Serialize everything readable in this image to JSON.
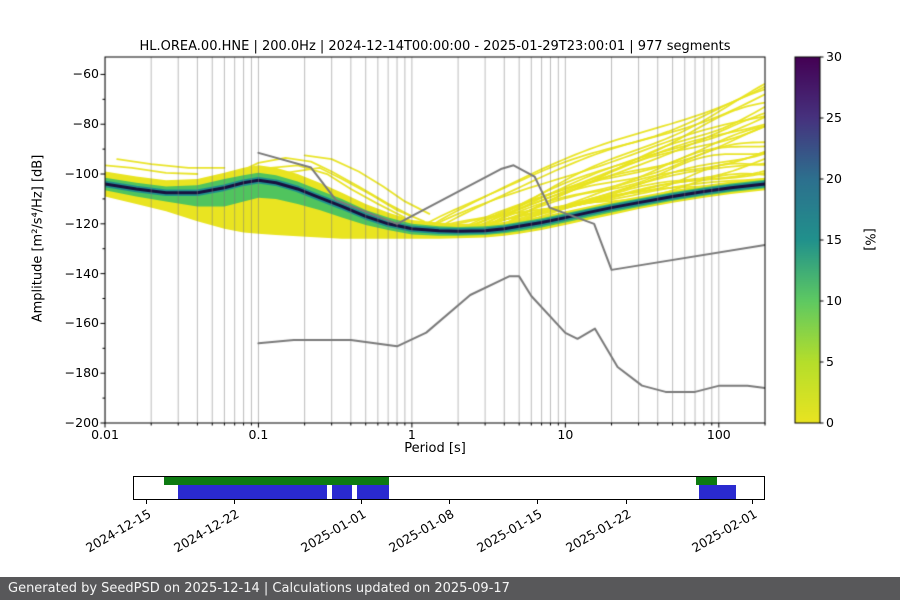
{
  "chart_data": {
    "type": "heatmap",
    "title": "HL.OREA.00.HNE | 200.0Hz | 2024-12-14T00:00:00 - 2025-01-29T23:00:01 | 977 segments",
    "xlabel": "Period [s]",
    "ylabel": "Amplitude [m²/s⁴/Hz] [dB]",
    "xscale": "log",
    "xlim": [
      0.01,
      200
    ],
    "ylim": [
      -200,
      -53
    ],
    "xticks": [
      0.01,
      0.1,
      1,
      10,
      100
    ],
    "xtick_labels": [
      "0.01",
      "0.1",
      "1",
      "10",
      "100"
    ],
    "yticks": [
      -200,
      -180,
      -160,
      -140,
      -120,
      -100,
      -80,
      -60
    ],
    "grid": {
      "color": "rgba(120,120,120,0.55)"
    },
    "colorbar": {
      "label": "[%]",
      "min": 0,
      "max": 30,
      "ticks": [
        0,
        5,
        10,
        15,
        20,
        25,
        30
      ],
      "stops": [
        {
          "v": 0,
          "c": "#e9e421"
        },
        {
          "v": 5,
          "c": "#b5de2b"
        },
        {
          "v": 10,
          "c": "#5ec962"
        },
        {
          "v": 15,
          "c": "#21918c"
        },
        {
          "v": 20,
          "c": "#2d708e"
        },
        {
          "v": 25,
          "c": "#46327e"
        },
        {
          "v": 30,
          "c": "#440154"
        }
      ]
    },
    "ppsd": {
      "periods": [
        0.01,
        0.016,
        0.025,
        0.04,
        0.06,
        0.08,
        0.1,
        0.13,
        0.18,
        0.25,
        0.35,
        0.5,
        0.7,
        1,
        1.5,
        2,
        3,
        4,
        5,
        7,
        10,
        14,
        20,
        30,
        50,
        80,
        120,
        200
      ],
      "mode_db": [
        -104,
        -106,
        -107.5,
        -107.5,
        -105.5,
        -103.5,
        -102.5,
        -103.5,
        -106,
        -109.5,
        -113,
        -117,
        -120,
        -122,
        -122.8,
        -123,
        -122.8,
        -122,
        -121,
        -119.5,
        -117.5,
        -115.5,
        -113.5,
        -111.5,
        -109,
        -107,
        -105.5,
        -104
      ],
      "yellow_upper": [
        -99,
        -101,
        -102.5,
        -102,
        -99.5,
        -97.5,
        -96.5,
        -97.5,
        -100,
        -103.5,
        -107.5,
        -112,
        -115.5,
        -118.5,
        -119.5,
        -120,
        -120,
        -119.3,
        -118.5,
        -117,
        -115,
        -113,
        -111,
        -109,
        -106.5,
        -104.5,
        -103,
        -101.5
      ],
      "yellow_lower": [
        -109,
        -112,
        -115,
        -119,
        -122,
        -123.5,
        -124,
        -124.5,
        -125,
        -125.5,
        -126,
        -126,
        -126,
        -126,
        -126,
        -125.8,
        -125.5,
        -124.8,
        -124,
        -122.5,
        -120.5,
        -118.5,
        -116.5,
        -114,
        -111.5,
        -109.5,
        -108,
        -106.5
      ],
      "green_upper": [
        -101.5,
        -103.5,
        -105,
        -104.5,
        -102,
        -100.5,
        -99.5,
        -100.5,
        -103,
        -106.5,
        -110,
        -114.5,
        -117.5,
        -120,
        -121,
        -121.3,
        -121,
        -120.3,
        -119.3,
        -117.8,
        -115.8,
        -113.8,
        -111.8,
        -109.8,
        -107.3,
        -105.3,
        -103.8,
        -102.3
      ],
      "green_lower": [
        -106.5,
        -109,
        -111,
        -113,
        -113,
        -111,
        -109.5,
        -110,
        -112,
        -114.5,
        -117.5,
        -120.5,
        -122.5,
        -124.3,
        -124.8,
        -124.8,
        -124.5,
        -123.8,
        -123,
        -121.5,
        -119.5,
        -117.5,
        -115.5,
        -113.2,
        -110.7,
        -108.7,
        -107.2,
        -105.7
      ],
      "teal_halfwidth_db": 1.3,
      "core_halfwidth_db": 0.6,
      "colors": {
        "yellow": "#e9e421",
        "green": "#50c45e",
        "teal": "#1f918d",
        "core": "#18103f"
      }
    },
    "extra_lines": [
      [
        [
          0.07,
          -100
        ],
        [
          0.1,
          -95.5
        ],
        [
          0.15,
          -93.5
        ],
        [
          0.22,
          -95
        ],
        [
          0.3,
          -99
        ],
        [
          0.45,
          -105
        ],
        [
          0.7,
          -112
        ],
        [
          1,
          -117
        ]
      ],
      [
        [
          0.08,
          -102
        ],
        [
          0.12,
          -97.5
        ],
        [
          0.18,
          -96.5
        ],
        [
          0.28,
          -100
        ],
        [
          0.4,
          -106
        ],
        [
          0.6,
          -112
        ],
        [
          0.9,
          -117.5
        ]
      ],
      [
        [
          0.15,
          -99.5
        ],
        [
          0.25,
          -97.5
        ],
        [
          0.35,
          -102
        ],
        [
          0.55,
          -108.5
        ],
        [
          0.8,
          -114.5
        ],
        [
          1.2,
          -119
        ]
      ],
      [
        [
          0.01,
          -96.5
        ],
        [
          0.015,
          -97.5
        ],
        [
          0.025,
          -99.5
        ],
        [
          0.04,
          -100
        ]
      ],
      [
        [
          0.012,
          -94
        ],
        [
          0.02,
          -96
        ],
        [
          0.035,
          -97.5
        ],
        [
          0.06,
          -97.5
        ]
      ],
      [
        [
          0.2,
          -92.5
        ],
        [
          0.3,
          -94
        ],
        [
          0.45,
          -99
        ],
        [
          0.65,
          -105
        ],
        [
          0.9,
          -111
        ],
        [
          1.3,
          -116
        ]
      ]
    ],
    "fan": {
      "count": 26,
      "seed": 9,
      "period_start_range": [
        0.9,
        5
      ],
      "end_db_range": [
        -66,
        -103
      ],
      "color": "#e9e421"
    },
    "noise_models": {
      "color": "#7a7a7a",
      "nhnm": [
        [
          0.1,
          -91.5
        ],
        [
          0.22,
          -97.4
        ],
        [
          0.32,
          -110.5
        ],
        [
          0.8,
          -120.0
        ],
        [
          3.8,
          -98.0
        ],
        [
          4.6,
          -96.5
        ],
        [
          6.3,
          -101.0
        ],
        [
          7.9,
          -113.5
        ],
        [
          15.4,
          -120.0
        ],
        [
          20.0,
          -138.5
        ],
        [
          200,
          -128.5
        ]
      ],
      "nlnm": [
        [
          0.1,
          -168.0
        ],
        [
          0.17,
          -166.7
        ],
        [
          0.4,
          -166.7
        ],
        [
          0.8,
          -169.2
        ],
        [
          1.24,
          -163.7
        ],
        [
          2.4,
          -148.6
        ],
        [
          4.3,
          -141.1
        ],
        [
          5.0,
          -141.1
        ],
        [
          6.0,
          -149.0
        ],
        [
          10.0,
          -163.8
        ],
        [
          12.0,
          -166.2
        ],
        [
          15.6,
          -162.1
        ],
        [
          21.9,
          -177.5
        ],
        [
          31.6,
          -185.0
        ],
        [
          45.0,
          -187.5
        ],
        [
          70.0,
          -187.5
        ],
        [
          101.0,
          -185.0
        ],
        [
          154.0,
          -185.0
        ],
        [
          200,
          -185.9
        ]
      ]
    },
    "availability_timeline": {
      "start": "2024-12-14",
      "end": "2025-02-02",
      "ticks": [
        "2024-12-15",
        "2024-12-22",
        "2025-01-01",
        "2025-01-08",
        "2025-01-15",
        "2025-01-22",
        "2025-02-01"
      ],
      "green_color": "#0d7a12",
      "blue_color": "#2a2ad0",
      "green_segments": [
        [
          "2024-12-16T10:00",
          "2025-01-03T06:00"
        ],
        [
          "2025-01-27T14:00",
          "2025-01-29T07:00"
        ]
      ],
      "blue_segments": [
        [
          "2024-12-17T12:00",
          "2024-12-29T08:00"
        ],
        [
          "2024-12-29T17:00",
          "2024-12-31T08:00"
        ],
        [
          "2024-12-31T17:00",
          "2025-01-03T06:00"
        ],
        [
          "2025-01-27T21:00",
          "2025-01-30T19:00"
        ]
      ]
    }
  },
  "footer": {
    "text": "Generated by SeedPSD on 2025-12-14 | Calculations updated on 2025-09-17",
    "bg": "#58585a",
    "fg": "#f5f5f5"
  }
}
